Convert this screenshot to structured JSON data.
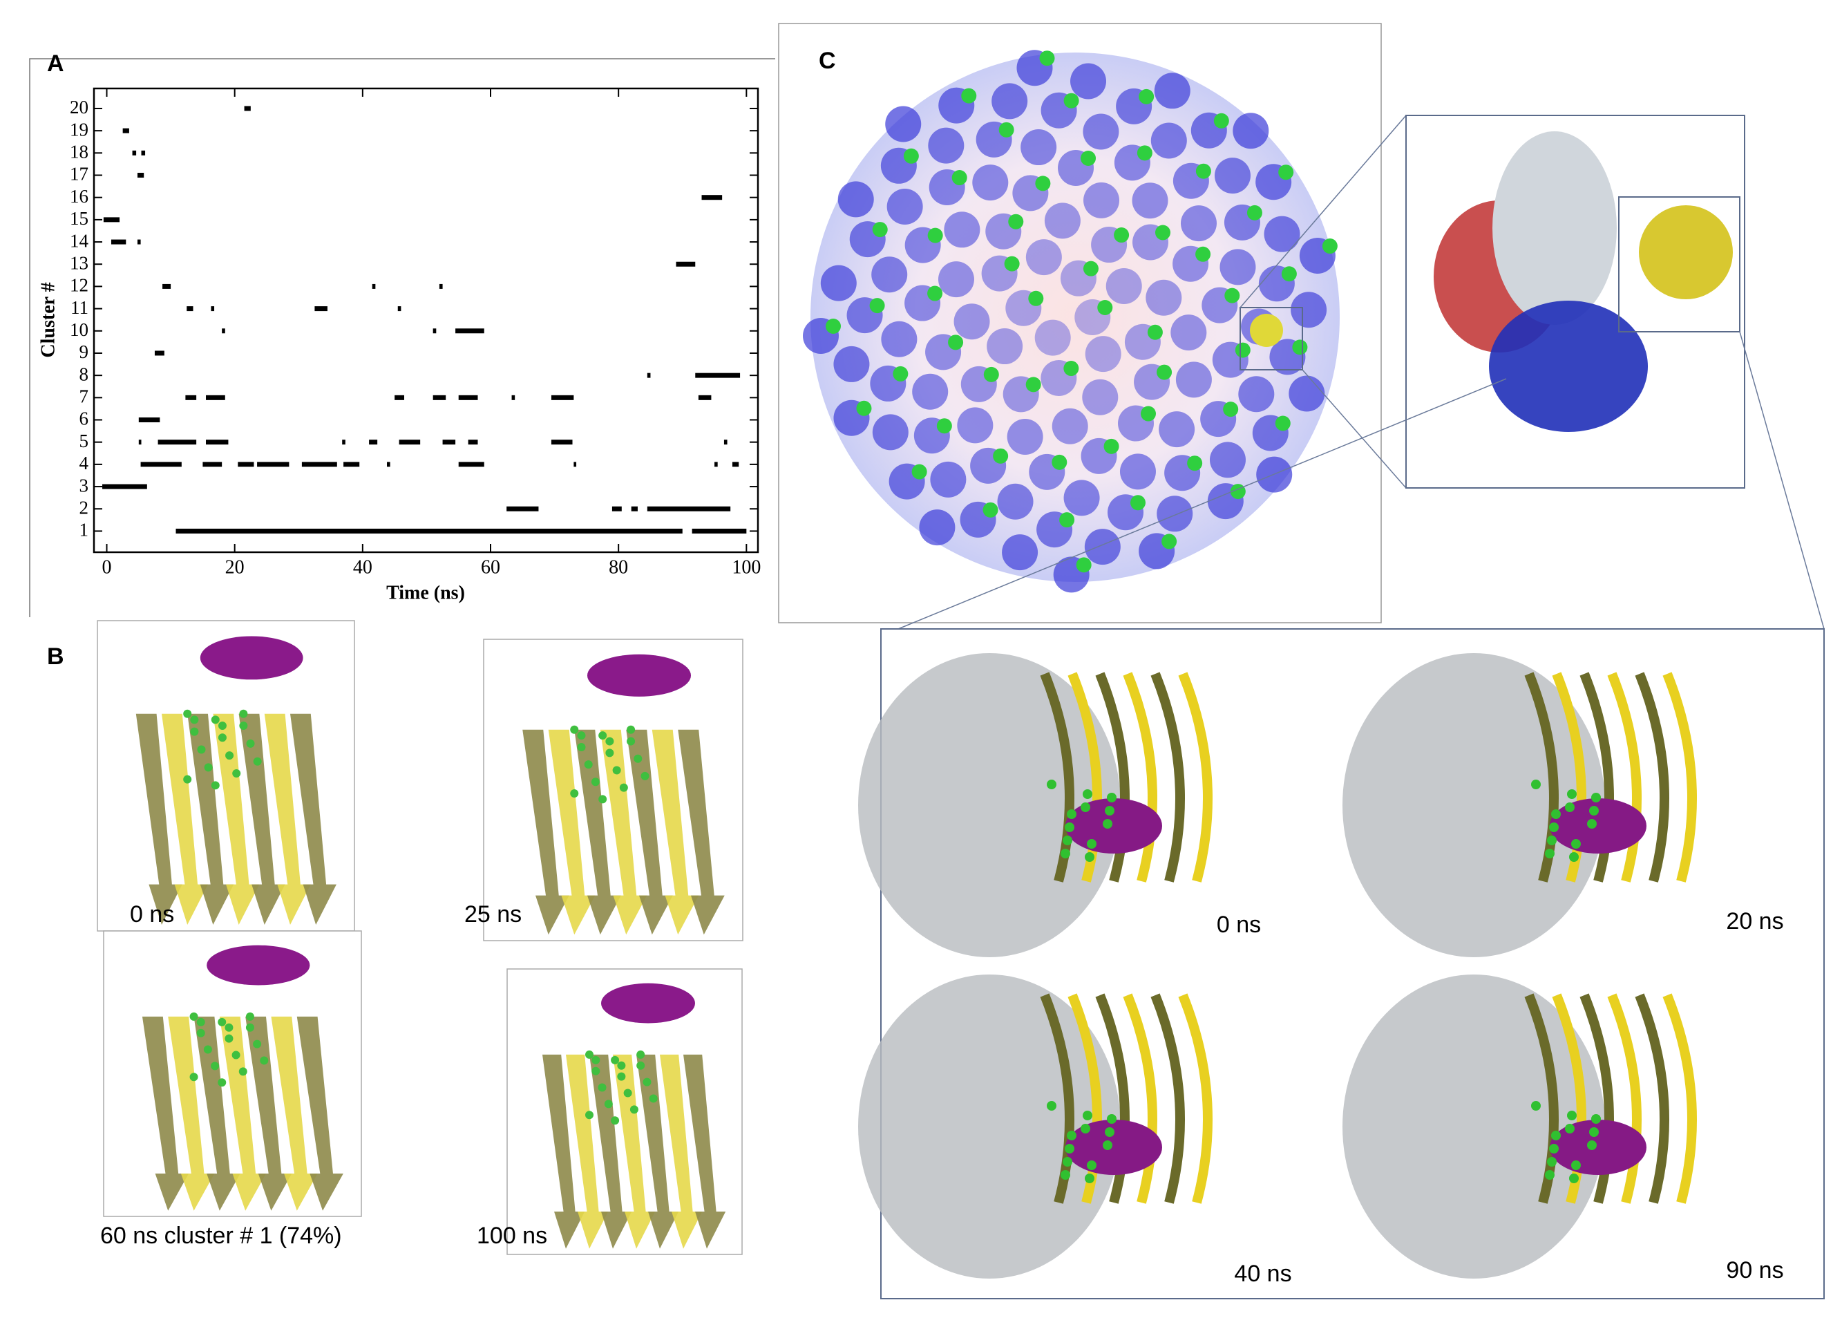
{
  "chart_data": {
    "type": "segments",
    "x_label": "Time (ns)",
    "y_label": "Cluster #",
    "xlim": [
      -2,
      101.8
    ],
    "ylim": [
      0.05,
      20.9
    ],
    "xticks": [
      0,
      20,
      40,
      60,
      80,
      100
    ],
    "yticks": [
      1,
      2,
      3,
      4,
      5,
      6,
      7,
      8,
      9,
      10,
      11,
      12,
      13,
      14,
      15,
      16,
      17,
      18,
      19,
      20
    ],
    "color": "#000000",
    "segments": [
      {
        "y": 20,
        "x": [
          21.5,
          22.5
        ]
      },
      {
        "y": 19,
        "x": [
          2.5,
          3.5
        ]
      },
      {
        "y": 18,
        "x": [
          4,
          4.6
        ]
      },
      {
        "y": 18,
        "x": [
          5.4,
          6
        ]
      },
      {
        "y": 17,
        "x": [
          4.8,
          5.8
        ]
      },
      {
        "y": 16,
        "x": [
          93,
          96.2
        ]
      },
      {
        "y": 15,
        "x": [
          -0.5,
          2
        ]
      },
      {
        "y": 14,
        "x": [
          0.7,
          3
        ]
      },
      {
        "y": 14,
        "x": [
          4.8,
          5.3
        ]
      },
      {
        "y": 13,
        "x": [
          89,
          92
        ]
      },
      {
        "y": 12,
        "x": [
          8.7,
          10
        ]
      },
      {
        "y": 12,
        "x": [
          41.5,
          42
        ]
      },
      {
        "y": 12,
        "x": [
          52,
          52.5
        ]
      },
      {
        "y": 11,
        "x": [
          12.5,
          13.5
        ]
      },
      {
        "y": 11,
        "x": [
          16.3,
          16.8
        ]
      },
      {
        "y": 11,
        "x": [
          32.5,
          34.5
        ]
      },
      {
        "y": 11,
        "x": [
          45.5,
          46
        ]
      },
      {
        "y": 10,
        "x": [
          18,
          18.5
        ]
      },
      {
        "y": 10,
        "x": [
          51,
          51.5
        ]
      },
      {
        "y": 10,
        "x": [
          54.5,
          59
        ]
      },
      {
        "y": 9,
        "x": [
          7.5,
          9
        ]
      },
      {
        "y": 8,
        "x": [
          84.5,
          85
        ]
      },
      {
        "y": 8,
        "x": [
          92,
          99
        ]
      },
      {
        "y": 7,
        "x": [
          12.3,
          14
        ]
      },
      {
        "y": 7,
        "x": [
          15.5,
          18.5
        ]
      },
      {
        "y": 7,
        "x": [
          45,
          46.5
        ]
      },
      {
        "y": 7,
        "x": [
          51,
          53
        ]
      },
      {
        "y": 7,
        "x": [
          55,
          58
        ]
      },
      {
        "y": 7,
        "x": [
          63.3,
          63.8
        ]
      },
      {
        "y": 7,
        "x": [
          69.5,
          73
        ]
      },
      {
        "y": 7,
        "x": [
          92.5,
          94.5
        ]
      },
      {
        "y": 6,
        "x": [
          5,
          8.3
        ]
      },
      {
        "y": 5,
        "x": [
          5,
          5.4
        ]
      },
      {
        "y": 5,
        "x": [
          8,
          14
        ]
      },
      {
        "y": 5,
        "x": [
          15.5,
          19
        ]
      },
      {
        "y": 5,
        "x": [
          36.8,
          37.3
        ]
      },
      {
        "y": 5,
        "x": [
          41,
          42.3
        ]
      },
      {
        "y": 5,
        "x": [
          45.7,
          49
        ]
      },
      {
        "y": 5,
        "x": [
          52.5,
          54.5
        ]
      },
      {
        "y": 5,
        "x": [
          56.5,
          58
        ]
      },
      {
        "y": 5,
        "x": [
          69.5,
          72.8
        ]
      },
      {
        "y": 5,
        "x": [
          96.5,
          97
        ]
      },
      {
        "y": 4,
        "x": [
          5.3,
          11.7
        ]
      },
      {
        "y": 4,
        "x": [
          15,
          18
        ]
      },
      {
        "y": 4,
        "x": [
          20.5,
          23
        ]
      },
      {
        "y": 4,
        "x": [
          23.5,
          28.5
        ]
      },
      {
        "y": 4,
        "x": [
          30.5,
          36
        ]
      },
      {
        "y": 4,
        "x": [
          37,
          39.5
        ]
      },
      {
        "y": 4,
        "x": [
          43.8,
          44.3
        ]
      },
      {
        "y": 4,
        "x": [
          55,
          59
        ]
      },
      {
        "y": 4,
        "x": [
          73,
          73.4
        ]
      },
      {
        "y": 4,
        "x": [
          95,
          95.5
        ]
      },
      {
        "y": 4,
        "x": [
          97.8,
          98.8
        ]
      },
      {
        "y": 3,
        "x": [
          -0.7,
          6.3
        ]
      },
      {
        "y": 2,
        "x": [
          62.5,
          67.5
        ]
      },
      {
        "y": 2,
        "x": [
          79,
          80.5
        ]
      },
      {
        "y": 2,
        "x": [
          82,
          83
        ]
      },
      {
        "y": 2,
        "x": [
          84.5,
          97.5
        ]
      },
      {
        "y": 1,
        "x": [
          10.8,
          90
        ]
      },
      {
        "y": 1,
        "x": [
          91.5,
          100
        ]
      }
    ]
  },
  "panel_labels": [
    "A",
    "B",
    "C"
  ],
  "panel_b": {
    "captions": [
      "0 ns",
      "25 ns",
      "60 ns cluster # 1 (74%)",
      "100 ns"
    ]
  },
  "panel_c": {
    "captions": [
      "0 ns",
      "20 ns",
      "40 ns",
      "90 ns"
    ]
  }
}
